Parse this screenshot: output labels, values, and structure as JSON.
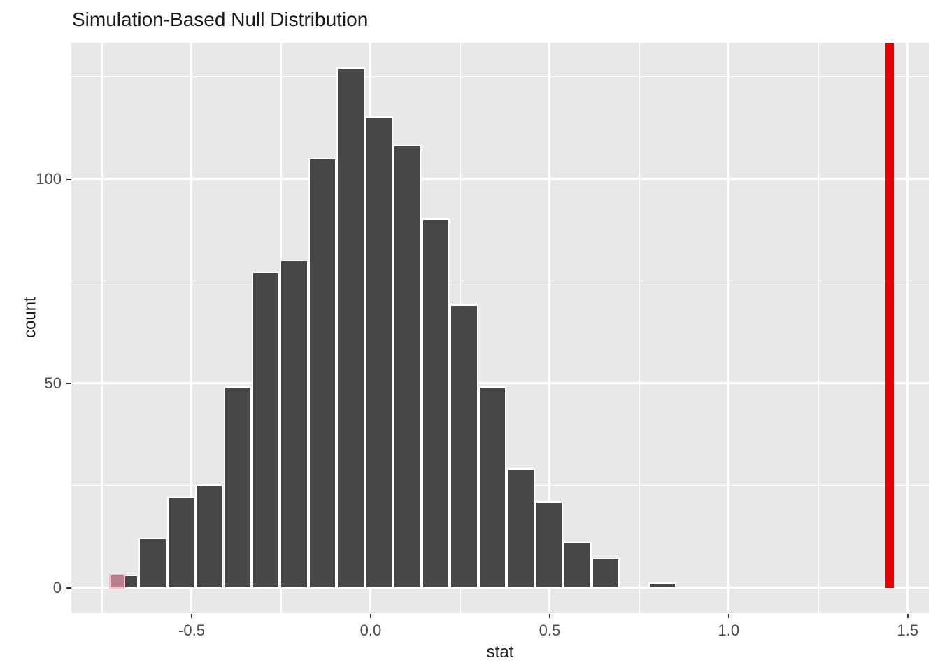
{
  "chart_data": {
    "type": "bar",
    "subtype": "histogram",
    "title": "Simulation-Based Null Distribution",
    "xlabel": "stat",
    "ylabel": "count",
    "bin_start": -0.7275,
    "binwidth": 0.0791,
    "bin_centers": [
      -0.688,
      -0.609,
      -0.53,
      -0.451,
      -0.372,
      -0.293,
      -0.214,
      -0.135,
      -0.056,
      0.023,
      0.102,
      0.181,
      0.261,
      0.34,
      0.419,
      0.498,
      0.577,
      0.656,
      0.735,
      0.814
    ],
    "counts": [
      3,
      12,
      22,
      25,
      49,
      77,
      80,
      105,
      127,
      115,
      108,
      90,
      69,
      49,
      29,
      21,
      11,
      7,
      0,
      1
    ],
    "observed_stat": 1.45,
    "shaded_bin": {
      "x_left": -0.7285,
      "x_right": -0.687,
      "count": 3
    },
    "x_ticks": [
      {
        "value": -0.5,
        "label": "-0.5"
      },
      {
        "value": 0.0,
        "label": "0.0"
      },
      {
        "value": 0.5,
        "label": "0.5"
      },
      {
        "value": 1.0,
        "label": "1.0"
      },
      {
        "value": 1.5,
        "label": "1.5"
      }
    ],
    "y_ticks": [
      {
        "value": 0,
        "label": "0"
      },
      {
        "value": 50,
        "label": "50"
      },
      {
        "value": 100,
        "label": "100"
      }
    ],
    "x_minor_gridlines": [
      -0.75,
      -0.25,
      0.25,
      0.75,
      1.25
    ],
    "y_minor_gridlines": [
      25,
      75,
      125
    ],
    "x_range": [
      -0.836,
      1.559
    ],
    "y_range": [
      -6.2,
      133.3
    ],
    "grid": true,
    "legend": "none",
    "colors": {
      "panel_background": "#e8e8e8",
      "bar_fill": "#474747",
      "bar_border": "#ffffff",
      "shaded_fill": "#b9818e",
      "shaded_border": "#f5c2cc",
      "observed_line": "#e60000",
      "gridline": "#ffffff",
      "tick_label": "#4d4d4d",
      "text": "#1a1a1a"
    }
  }
}
